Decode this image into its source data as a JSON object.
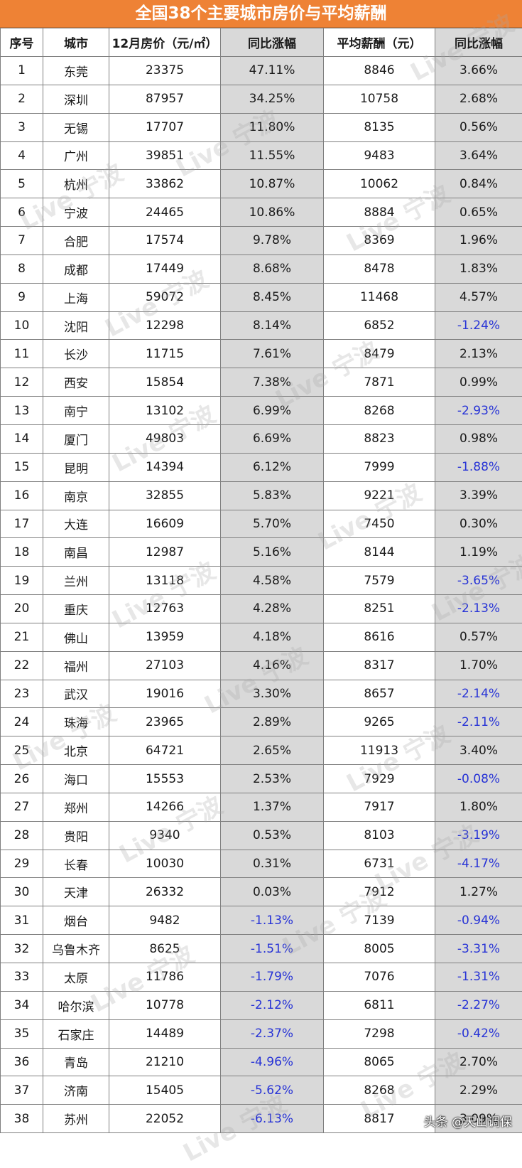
{
  "title": "全国38个主要城市房价与平均薪酬",
  "headers": [
    "序号",
    "城市",
    "12月房价（元/㎡）",
    "同比涨幅",
    "平均薪酬（元）",
    "同比涨幅"
  ],
  "rows": [
    [
      "1",
      "东莞",
      "23375",
      "47.11%",
      "8846",
      "3.66%"
    ],
    [
      "2",
      "深圳",
      "87957",
      "34.25%",
      "10758",
      "2.68%"
    ],
    [
      "3",
      "无锡",
      "17707",
      "11.80%",
      "8135",
      "0.56%"
    ],
    [
      "4",
      "广州",
      "39851",
      "11.55%",
      "9483",
      "3.64%"
    ],
    [
      "5",
      "杭州",
      "33862",
      "10.87%",
      "10062",
      "0.84%"
    ],
    [
      "6",
      "宁波",
      "24465",
      "10.86%",
      "8884",
      "0.65%"
    ],
    [
      "7",
      "合肥",
      "17574",
      "9.78%",
      "8369",
      "1.96%"
    ],
    [
      "8",
      "成都",
      "17449",
      "8.68%",
      "8478",
      "1.83%"
    ],
    [
      "9",
      "上海",
      "59072",
      "8.45%",
      "11468",
      "4.57%"
    ],
    [
      "10",
      "沈阳",
      "12298",
      "8.14%",
      "6852",
      "-1.24%"
    ],
    [
      "11",
      "长沙",
      "11715",
      "7.61%",
      "8479",
      "2.13%"
    ],
    [
      "12",
      "西安",
      "15854",
      "7.38%",
      "7871",
      "0.99%"
    ],
    [
      "13",
      "南宁",
      "13102",
      "6.99%",
      "8268",
      "-2.93%"
    ],
    [
      "14",
      "厦门",
      "49803",
      "6.69%",
      "8823",
      "0.98%"
    ],
    [
      "15",
      "昆明",
      "14394",
      "6.12%",
      "7999",
      "-1.88%"
    ],
    [
      "16",
      "南京",
      "32855",
      "5.83%",
      "9221",
      "3.39%"
    ],
    [
      "17",
      "大连",
      "16609",
      "5.70%",
      "7450",
      "0.30%"
    ],
    [
      "18",
      "南昌",
      "12987",
      "5.16%",
      "8144",
      "1.19%"
    ],
    [
      "19",
      "兰州",
      "13118",
      "4.58%",
      "7579",
      "-3.65%"
    ],
    [
      "20",
      "重庆",
      "12763",
      "4.28%",
      "8251",
      "-2.13%"
    ],
    [
      "21",
      "佛山",
      "13959",
      "4.18%",
      "8616",
      "0.57%"
    ],
    [
      "22",
      "福州",
      "27103",
      "4.16%",
      "8317",
      "1.70%"
    ],
    [
      "23",
      "武汉",
      "19016",
      "3.30%",
      "8657",
      "-2.14%"
    ],
    [
      "24",
      "珠海",
      "23965",
      "2.89%",
      "9265",
      "-2.11%"
    ],
    [
      "25",
      "北京",
      "64721",
      "2.65%",
      "11913",
      "3.40%"
    ],
    [
      "26",
      "海口",
      "15553",
      "2.53%",
      "7929",
      "-0.08%"
    ],
    [
      "27",
      "郑州",
      "14266",
      "1.37%",
      "7917",
      "1.80%"
    ],
    [
      "28",
      "贵阳",
      "9340",
      "0.53%",
      "8103",
      "-3.19%"
    ],
    [
      "29",
      "长春",
      "10030",
      "0.31%",
      "6731",
      "-4.17%"
    ],
    [
      "30",
      "天津",
      "26332",
      "0.03%",
      "7912",
      "1.27%"
    ],
    [
      "31",
      "烟台",
      "9482",
      "-1.13%",
      "7139",
      "-0.94%"
    ],
    [
      "32",
      "乌鲁木齐",
      "8625",
      "-1.51%",
      "8005",
      "-3.31%"
    ],
    [
      "33",
      "太原",
      "11786",
      "-1.79%",
      "7076",
      "-1.31%"
    ],
    [
      "34",
      "哈尔滨",
      "10778",
      "-2.12%",
      "6811",
      "-2.27%"
    ],
    [
      "35",
      "石家庄",
      "14489",
      "-2.37%",
      "7298",
      "-0.42%"
    ],
    [
      "36",
      "青岛",
      "21210",
      "-4.96%",
      "8065",
      "2.70%"
    ],
    [
      "37",
      "济南",
      "15405",
      "-5.62%",
      "8268",
      "2.29%"
    ],
    [
      "38",
      "苏州",
      "22052",
      "-6.13%",
      "8817",
      "3.09%"
    ]
  ],
  "watermark": "Live 宁波",
  "credit": "头条 @天山调保",
  "colors": {
    "title_bg": "#ee8235",
    "shade": "#d9d9d9",
    "negative": "#2733d6"
  }
}
